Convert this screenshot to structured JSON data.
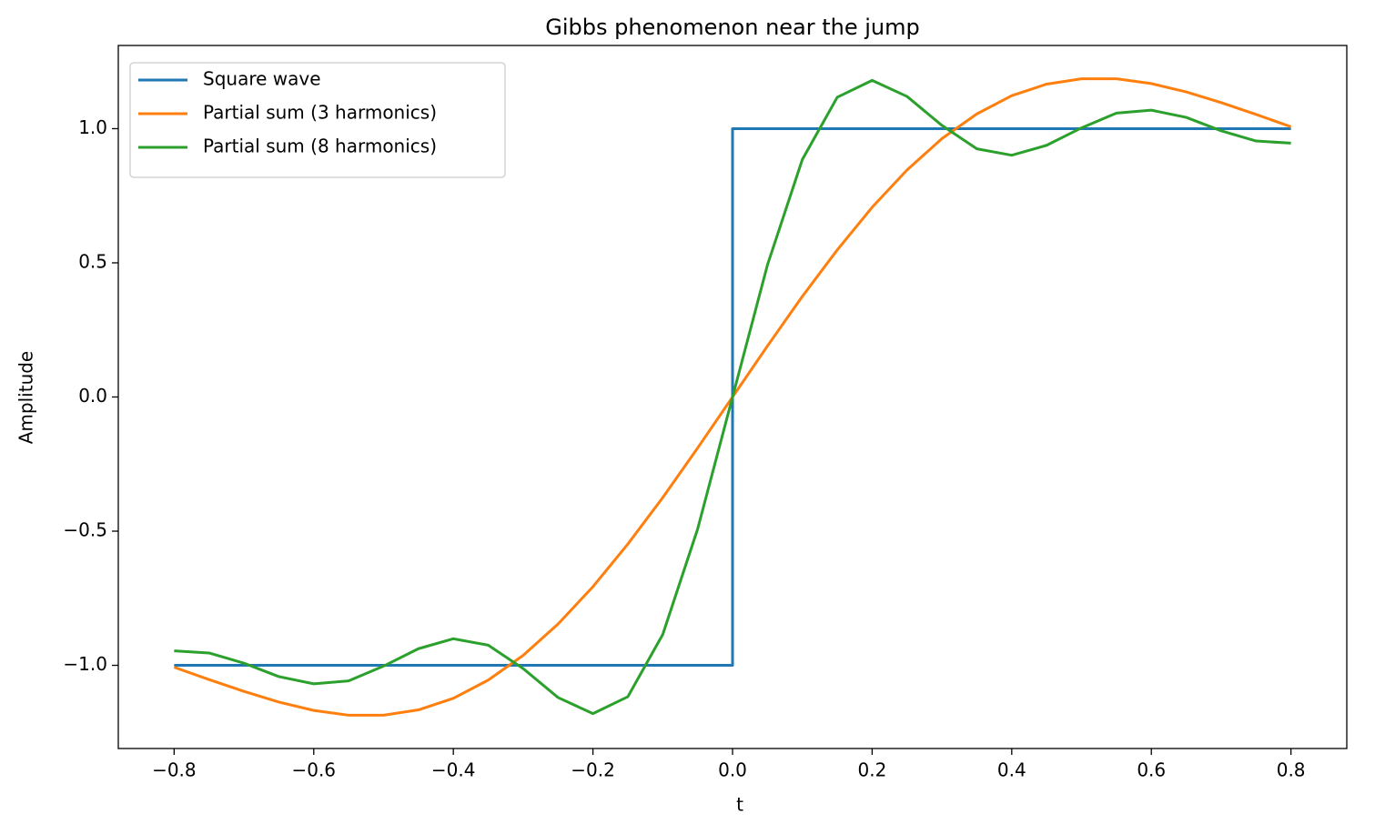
{
  "chart_data": {
    "type": "line",
    "title": "Gibbs phenomenon near the jump",
    "x_label": "t",
    "y_label": "Amplitude",
    "x": [
      -0.8,
      -0.75,
      -0.7,
      -0.65,
      -0.6,
      -0.55,
      -0.5,
      -0.45,
      -0.4,
      -0.35,
      -0.3,
      -0.25,
      -0.2,
      -0.15,
      -0.1,
      -0.05,
      0,
      0.05,
      0.1,
      0.15,
      0.2,
      0.25,
      0.3,
      0.35,
      0.4,
      0.45,
      0.5,
      0.55,
      0.6,
      0.65,
      0.7,
      0.75,
      0.8
    ],
    "series": [
      {
        "name": "Square wave",
        "color": "#1f77b4",
        "x": [
          -0.8,
          0,
          0,
          0.8
        ],
        "values": [
          -1,
          -1,
          1,
          1
        ]
      },
      {
        "name": "Partial sum (3 harmonics)",
        "color": "#ff7f0e",
        "values": [
          -1.007,
          -1.053,
          -1.097,
          -1.137,
          -1.168,
          -1.186,
          -1.186,
          -1.166,
          -1.123,
          -1.055,
          -0.963,
          -0.846,
          -0.707,
          -0.548,
          -0.375,
          -0.19,
          0,
          0.19,
          0.375,
          0.548,
          0.707,
          0.846,
          0.963,
          1.055,
          1.123,
          1.166,
          1.186,
          1.186,
          1.168,
          1.137,
          1.097,
          1.053,
          1.007
        ]
      },
      {
        "name": "Partial sum (8 harmonics)",
        "color": "#2ca02c",
        "values": [
          -0.946,
          -0.954,
          -0.992,
          -1.042,
          -1.069,
          -1.058,
          -1.003,
          -0.938,
          -0.901,
          -0.925,
          -1.012,
          -1.12,
          -1.18,
          -1.117,
          -0.885,
          -0.492,
          0,
          0.492,
          0.885,
          1.117,
          1.18,
          1.12,
          1.012,
          0.925,
          0.901,
          0.938,
          1.003,
          1.058,
          1.069,
          1.042,
          0.992,
          0.954,
          0.946
        ]
      }
    ],
    "xlim": [
      -0.88,
      0.88
    ],
    "ylim": [
      -1.31,
      1.31
    ],
    "xticks": [
      {
        "value": -0.8,
        "label": "−0.8"
      },
      {
        "value": -0.6,
        "label": "−0.6"
      },
      {
        "value": -0.4,
        "label": "−0.4"
      },
      {
        "value": -0.2,
        "label": "−0.2"
      },
      {
        "value": 0,
        "label": "0.0"
      },
      0.2,
      0.4,
      0.6,
      0.8
    ],
    "yticks": [
      {
        "value": -1,
        "label": "−1.0"
      },
      {
        "value": -0.5,
        "label": "−0.5"
      },
      {
        "value": 0,
        "label": "0.0"
      },
      0.5,
      {
        "value": 1,
        "label": "1.0"
      }
    ],
    "grid": false,
    "legend": "upper left"
  }
}
